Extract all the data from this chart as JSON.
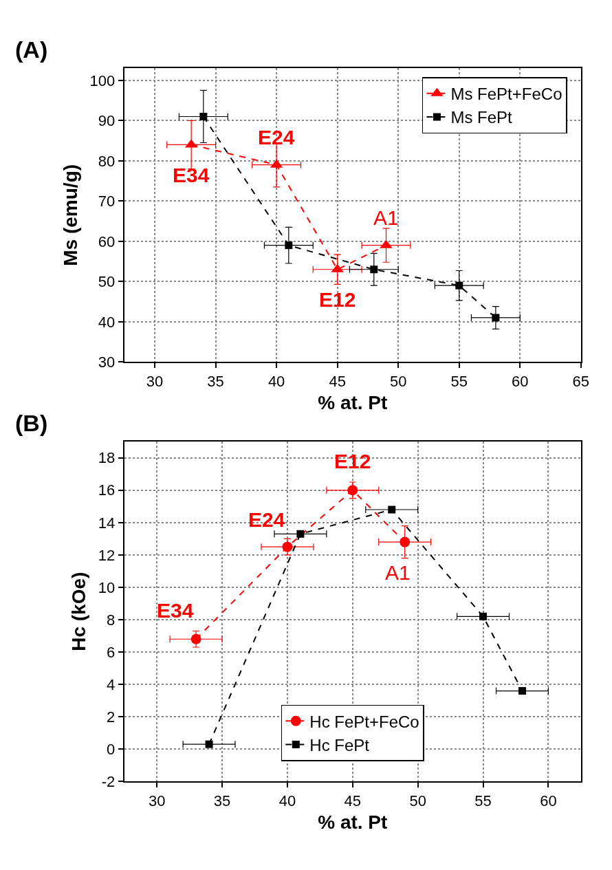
{
  "chart_data": [
    {
      "type": "line",
      "title": "(A)",
      "xlabel": "% at. Pt",
      "ylabel": "Ms (emu/g)",
      "xlim": [
        27.5,
        65
      ],
      "xticks": [
        30,
        35,
        40,
        45,
        50,
        55,
        60,
        65
      ],
      "ylim": [
        30,
        103
      ],
      "yticks": [
        30,
        40,
        50,
        60,
        70,
        80,
        90,
        100
      ],
      "grid": true,
      "legend": "top right",
      "line_style": "dashed",
      "series": [
        {
          "name": "Ms FePt+FeCo",
          "color": "#ff0000",
          "marker": "triangle",
          "x": [
            33,
            40,
            45,
            49
          ],
          "values": [
            84,
            79,
            53,
            59
          ],
          "errors": [
            6,
            5.5,
            3.7,
            4.2
          ],
          "xerrors": [
            2,
            2,
            2,
            2
          ]
        },
        {
          "name": "Ms FePt",
          "color": "#000000",
          "marker": "square",
          "x": [
            34,
            41,
            48,
            55,
            58
          ],
          "values": [
            91,
            59,
            53,
            49,
            41
          ],
          "errors": [
            6.5,
            4.5,
            4,
            3.7,
            2.8
          ],
          "xerrors": [
            2,
            2,
            2,
            2,
            2
          ]
        }
      ],
      "annotations": [
        {
          "text": "E34",
          "x": 33,
          "y": 84
        },
        {
          "text": "E24",
          "x": 40,
          "y": 79
        },
        {
          "text": "E12",
          "x": 45,
          "y": 53
        },
        {
          "text": "A1",
          "x": 49,
          "y": 59
        }
      ]
    },
    {
      "type": "line",
      "title": "(B)",
      "xlabel": "% at. Pt",
      "ylabel": "Hc (kOe)",
      "xlim": [
        27.5,
        62.5
      ],
      "xticks": [
        30,
        35,
        40,
        45,
        50,
        55,
        60
      ],
      "ylim": [
        -2,
        19
      ],
      "yticks": [
        -2,
        0,
        2,
        4,
        6,
        8,
        10,
        12,
        14,
        16,
        18
      ],
      "grid": true,
      "legend": "bottom",
      "line_style": "dashed",
      "series": [
        {
          "name": "Hc FePt+FeCo",
          "color": "#ff0000",
          "marker": "circle",
          "x": [
            33,
            40,
            45,
            49
          ],
          "values": [
            6.8,
            12.5,
            16,
            12.8
          ],
          "errors": [
            0.5,
            0.5,
            0.5,
            1
          ],
          "xerrors": [
            2,
            2,
            2,
            2
          ]
        },
        {
          "name": "Hc FePt",
          "color": "#000000",
          "marker": "square",
          "x": [
            34,
            41,
            48,
            55,
            58
          ],
          "values": [
            0.3,
            13.3,
            14.8,
            8.2,
            3.6
          ],
          "xerrors": [
            2,
            2,
            2,
            2,
            2
          ]
        }
      ],
      "annotations": [
        {
          "text": "E34",
          "x": 33,
          "y": 6.8
        },
        {
          "text": "E24",
          "x": 40,
          "y": 12.5
        },
        {
          "text": "E12",
          "x": 45,
          "y": 16
        },
        {
          "text": "A1",
          "x": 49,
          "y": 12.8
        }
      ]
    }
  ]
}
